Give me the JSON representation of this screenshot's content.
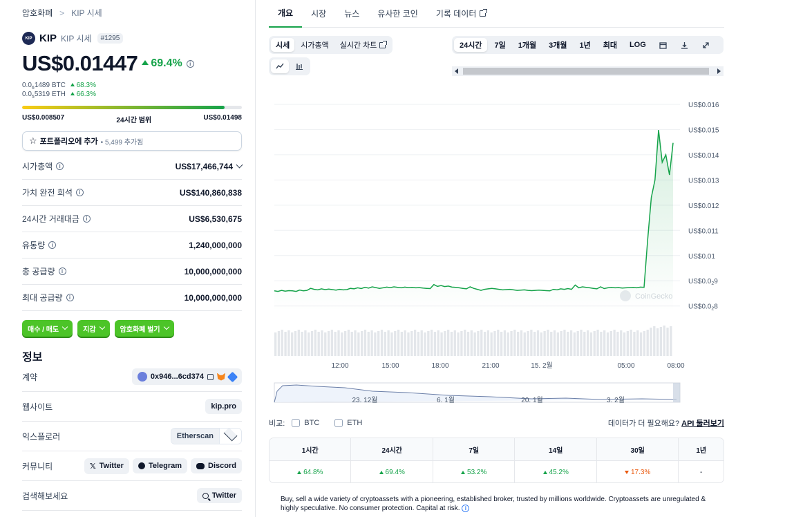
{
  "breadcrumb": {
    "root": "암호화폐",
    "sep": ">",
    "current": "KIP 시세"
  },
  "coin": {
    "logo_text": "KIP",
    "symbol": "KIP",
    "subtitle": "KIP 시세",
    "rank": "#1295",
    "price": "US$0.01447",
    "change_24h": "69.4%",
    "btc_price_prefix": "0.0",
    "btc_price_sub": "6",
    "btc_price_rest": "1489 BTC",
    "btc_change": "68.3%",
    "eth_price_prefix": "0.0",
    "eth_price_sub": "5",
    "eth_price_rest": "5319 ETH",
    "eth_change": "66.3%"
  },
  "range": {
    "low": "US$0.008507",
    "label": "24시간 범위",
    "high": "US$0.01498",
    "fill_percent": 92
  },
  "portfolio": {
    "label": "포트폴리오에 추가",
    "count": "• 5,499 추가됨"
  },
  "stats": [
    {
      "label": "시가총액",
      "value": "US$17,466,744",
      "info": true,
      "expand": true
    },
    {
      "label": "가치 완전 희석",
      "value": "US$140,860,838",
      "info": true
    },
    {
      "label": "24시간 거래대금",
      "value": "US$6,530,675",
      "info": true
    },
    {
      "label": "유통량",
      "value": "1,240,000,000",
      "info": true
    },
    {
      "label": "총 공급량",
      "value": "10,000,000,000",
      "info": true
    },
    {
      "label": "최대 공급량",
      "value": "10,000,000,000",
      "info": true
    }
  ],
  "actions": {
    "buy_sell": "매수 / 매도",
    "wallet": "지갑",
    "earn": "암호화폐 벌기"
  },
  "info": {
    "title": "정보",
    "contract_label": "계약",
    "contract_value": "0x946...6cd374",
    "website_label": "웹사이트",
    "website_value": "kip.pro",
    "explorer_label": "익스플로러",
    "explorer_value": "Etherscan",
    "community_label": "커뮤니티",
    "twitter": "Twitter",
    "telegram": "Telegram",
    "discord": "Discord",
    "search_label": "검색해보세요",
    "search_twitter": "Twitter"
  },
  "tabs": [
    "개요",
    "시장",
    "뉴스",
    "유사한 코인",
    "기록 데이터"
  ],
  "chart_type_tabs": {
    "price": "시세",
    "mcap": "시가총액",
    "live": "실시간 차트"
  },
  "ranges": [
    "24시간",
    "7일",
    "1개월",
    "3개월",
    "1년",
    "최대",
    "LOG"
  ],
  "chart_data": {
    "type": "line",
    "y_ticks": [
      "US$0.016",
      "US$0.015",
      "US$0.014",
      "US$0.013",
      "US$0.012",
      "US$0.011",
      "US$0.01"
    ],
    "y_tick_sub_labels": [
      {
        "prefix": "US$0.0",
        "sub": "2",
        "rest": "9"
      },
      {
        "prefix": "US$0.0",
        "sub": "2",
        "rest": "8"
      }
    ],
    "x_ticks": [
      "12:00",
      "15:00",
      "18:00",
      "21:00",
      "15. 2월",
      "05:00",
      "08:00"
    ],
    "nav_ticks": [
      "23. 12월",
      "6. 1월",
      "20. 1월",
      "3. 2월"
    ],
    "ylim": [
      0.0078,
      0.0163
    ],
    "watermark": "CoinGecko",
    "series": [
      {
        "values": [
          0.0086,
          0.00858,
          0.00862,
          0.00859,
          0.00861,
          0.0086,
          0.00858,
          0.00863,
          0.0086,
          0.00862,
          0.0087,
          0.00866,
          0.00864,
          0.00868,
          0.00865,
          0.00867,
          0.00865,
          0.00863,
          0.00866,
          0.00864,
          0.00865,
          0.0087,
          0.00868,
          0.00872,
          0.00869,
          0.00874,
          0.00871,
          0.00876,
          0.00873,
          0.0087,
          0.00872,
          0.00875,
          0.00873,
          0.00876,
          0.00874,
          0.00872,
          0.00875,
          0.00873,
          0.00874,
          0.00872,
          0.00873,
          0.00871,
          0.0087,
          0.00869,
          0.00885,
          0.00878,
          0.00881,
          0.00877,
          0.00879,
          0.00875,
          0.00874,
          0.00872,
          0.0087,
          0.00868,
          0.00876,
          0.0087,
          0.00866,
          0.00862,
          0.00866,
          0.00868,
          0.0087,
          0.00868,
          0.00866,
          0.00864,
          0.00865,
          0.00866,
          0.00864,
          0.00862,
          0.00863,
          0.00864,
          0.00862,
          0.00861,
          0.00862,
          0.00863,
          0.00862,
          0.00861,
          0.0086,
          0.00866,
          0.00864,
          0.00868,
          0.00866,
          0.00869,
          0.00866,
          0.00883,
          0.00872,
          0.00876,
          0.00874,
          0.00872,
          0.0087,
          0.00868,
          0.00876,
          0.00869,
          0.00872,
          0.00874,
          0.00872,
          0.00873,
          0.00871,
          0.00872,
          0.00873,
          0.00874,
          0.00872,
          0.00875,
          0.00874,
          0.01065,
          0.0123,
          0.013,
          0.01498,
          0.0137,
          0.014,
          0.0132,
          0.01447
        ]
      }
    ]
  },
  "compare": {
    "label": "비교:",
    "btc": "BTC",
    "eth": "ETH",
    "need_more": "데이터가 더 필요해요?",
    "api": "API 둘러보기"
  },
  "performance": {
    "headers": [
      "1시간",
      "24시간",
      "7일",
      "14일",
      "30일",
      "1년"
    ],
    "values": [
      "64.8%",
      "69.4%",
      "53.2%",
      "45.2%",
      "17.3%",
      "-"
    ],
    "directions": [
      "up",
      "up",
      "up",
      "up",
      "down",
      "none"
    ]
  },
  "disclaimer": "Buy, sell a wide variety of cryptoassets with a pioneering, established broker, trusted by millions worldwide. Cryptoassets are unregulated & highly speculative. No consumer protection. Capital at risk.",
  "colors": {
    "green": "#16a34a",
    "line": "#16a34a",
    "button_green": "#4cc428",
    "down": "#ea580c"
  }
}
